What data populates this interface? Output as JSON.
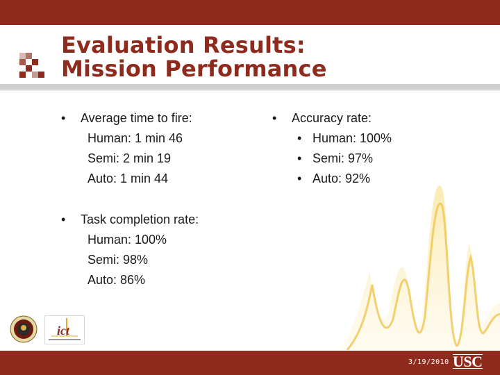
{
  "slide": {
    "title_line1": "Evaluation Results:",
    "title_line2": "Mission Performance",
    "left_blocks": [
      {
        "heading": "Average time to fire:",
        "lines": [
          "Human: 1 min 46",
          "Semi: 2 min 19",
          "Auto: 1 min 44"
        ]
      },
      {
        "heading": "Task completion rate:",
        "lines": [
          "Human: 100%",
          "Semi: 98%",
          "Auto: 86%"
        ]
      }
    ],
    "right_block": {
      "heading": "Accuracy rate:",
      "items": [
        "Human: 100%",
        "Semi: 97%",
        "Auto: 92%"
      ]
    },
    "bullet_glyph": "•"
  },
  "footer": {
    "date": "3/19/2010",
    "usc_logo_text": "USC",
    "ict_logo_text": "ict"
  },
  "colors": {
    "brand": "#8e2b1c",
    "rule": "#cfcfcf",
    "wave": "#f1c84a"
  }
}
